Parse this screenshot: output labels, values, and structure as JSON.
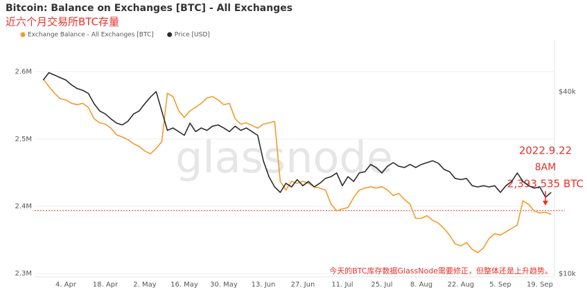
{
  "chart_data": {
    "type": "line",
    "title": "Bitcoin: Balance on Exchanges [BTC] - All Exchanges",
    "subtitle": "近六个月交易所BTC存量",
    "watermark": "glassnode",
    "categories": [
      null,
      null,
      null,
      null,
      "4. Apr",
      null,
      null,
      null,
      null,
      null,
      null,
      "18. Apr",
      null,
      null,
      null,
      null,
      null,
      null,
      "2. May",
      null,
      null,
      null,
      null,
      null,
      null,
      "16. May",
      null,
      null,
      null,
      null,
      null,
      null,
      "30. May",
      null,
      null,
      null,
      null,
      null,
      null,
      "13. Jun",
      null,
      null,
      null,
      null,
      null,
      null,
      "27. Jun",
      null,
      null,
      null,
      null,
      null,
      null,
      "11. Jul",
      null,
      null,
      null,
      null,
      null,
      null,
      "25. Jul",
      null,
      null,
      null,
      null,
      null,
      null,
      "8. Aug",
      null,
      null,
      null,
      null,
      null,
      null,
      "22. Aug",
      null,
      null,
      null,
      null,
      null,
      null,
      "5. Sep",
      null,
      null,
      null,
      null,
      null,
      null,
      "19. Sep",
      null,
      null
    ],
    "series": [
      {
        "name": "Exchange Balance - All Exchanges [BTC]",
        "color": "#f39a2b",
        "axis": "y",
        "values": [
          2589000,
          2578000,
          2568000,
          2560000,
          2558000,
          2553000,
          2551000,
          2553000,
          2547000,
          2530000,
          2524000,
          2522000,
          2516000,
          2506000,
          2503000,
          2499000,
          2493000,
          2489000,
          2482000,
          2478000,
          2486000,
          2496000,
          2568000,
          2563000,
          2542000,
          2532000,
          2542000,
          2547000,
          2553000,
          2561000,
          2563000,
          2558000,
          2551000,
          2553000,
          2530000,
          2522000,
          2524000,
          2520000,
          2516000,
          2522000,
          2524000,
          2526000,
          2437000,
          2424000,
          2437000,
          2434000,
          2437000,
          2434000,
          2429000,
          2427000,
          2424000,
          2403000,
          2393000,
          2396000,
          2398000,
          2413000,
          2424000,
          2427000,
          2429000,
          2427000,
          2429000,
          2424000,
          2416000,
          2419000,
          2410000,
          2403000,
          2382000,
          2382000,
          2386000,
          2379000,
          2375000,
          2367000,
          2357000,
          2344000,
          2341000,
          2346000,
          2336000,
          2331000,
          2338000,
          2352000,
          2359000,
          2357000,
          2362000,
          2367000,
          2372000,
          2408000,
          2403000,
          2393000,
          2390000,
          2391000,
          2388000
        ]
      },
      {
        "name": "Price [USD]",
        "color": "#2b2b2b",
        "axis": "y2",
        "values": [
          41900,
          43100,
          42700,
          42300,
          41900,
          41100,
          40500,
          40200,
          39700,
          38000,
          36800,
          36300,
          35500,
          34800,
          34500,
          35100,
          36300,
          36800,
          38000,
          39100,
          40000,
          36800,
          33600,
          34000,
          33400,
          32800,
          34800,
          33400,
          34000,
          33600,
          34300,
          34500,
          34000,
          33400,
          34300,
          33600,
          34000,
          33400,
          32800,
          28600,
          26000,
          24300,
          23400,
          24900,
          24300,
          25500,
          24500,
          25200,
          24300,
          24900,
          25700,
          26000,
          26600,
          24500,
          26000,
          25200,
          26600,
          26800,
          28000,
          27500,
          26600,
          27700,
          28300,
          27700,
          27500,
          28000,
          27500,
          28000,
          28300,
          28600,
          28200,
          27200,
          26800,
          25700,
          25500,
          25700,
          24500,
          24300,
          24500,
          24300,
          24500,
          23400,
          24500,
          25200,
          26600,
          25200,
          24500,
          24100,
          24300,
          22600,
          23400
        ]
      }
    ],
    "ylim": [
      2295000,
      2650000
    ],
    "yticks": [
      {
        "value": 2300000,
        "label": "2.3M"
      },
      {
        "value": 2400000,
        "label": "2.4M"
      },
      {
        "value": 2500000,
        "label": "2.5M"
      },
      {
        "value": 2600000,
        "label": "2.6M"
      }
    ],
    "y2lim": [
      9500,
      48800
    ],
    "y2ticks": [
      {
        "value": 10000,
        "label": "$10k"
      },
      {
        "value": 40000,
        "label": "$40k"
      }
    ],
    "grid": true,
    "reference_line": {
      "value": 2393535,
      "label": "2,393,535 BTC",
      "color": "#e8302a"
    },
    "annotations": [
      "2022.9.22",
      "8AM"
    ],
    "note": "今天的BTC库存数据GlassNode需要修正，但整体还是上升趋势。"
  }
}
